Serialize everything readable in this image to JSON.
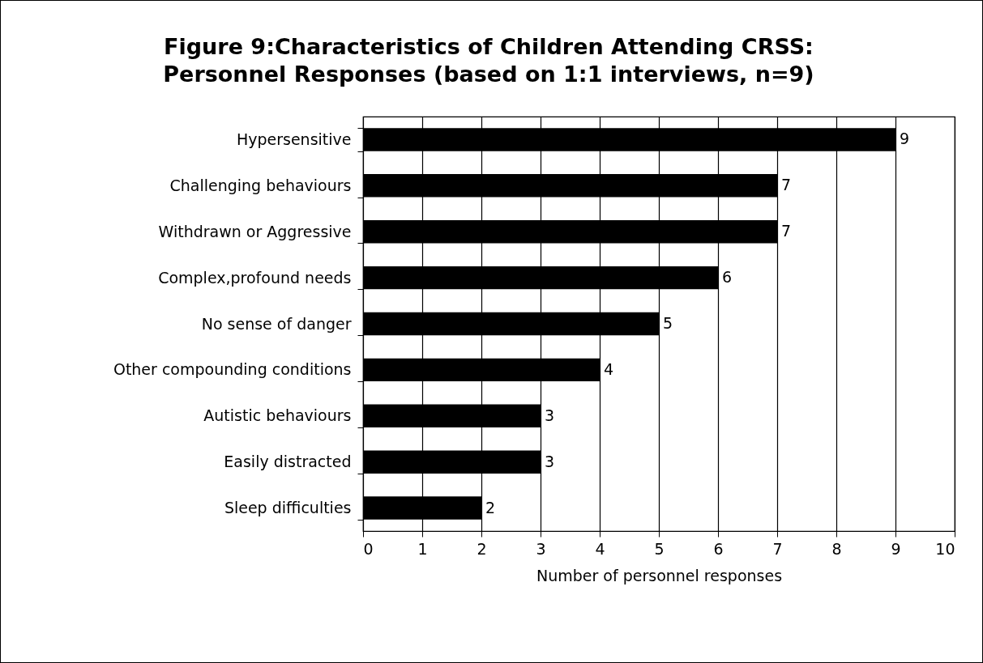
{
  "chart_data": {
    "type": "bar",
    "orientation": "horizontal",
    "title": "Figure 9:Characteristics of Children Attending CRSS: Personnel Responses (based on 1:1 interviews, n=9)",
    "categories": [
      "Hypersensitive",
      "Challenging behaviours",
      "Withdrawn or Aggressive",
      "Complex,profound needs",
      "No sense of danger",
      "Other compounding conditions",
      "Autistic behaviours",
      "Easily distracted",
      "Sleep difficulties"
    ],
    "values": [
      9,
      7,
      7,
      6,
      5,
      4,
      3,
      3,
      2
    ],
    "color": "#000000",
    "xlabel": "Number of personnel responses",
    "xlim": [
      0,
      10
    ],
    "xticks": [
      0,
      1,
      2,
      3,
      4,
      5,
      6,
      7,
      8,
      9,
      10
    ],
    "grid": "x",
    "data_labels": true
  }
}
